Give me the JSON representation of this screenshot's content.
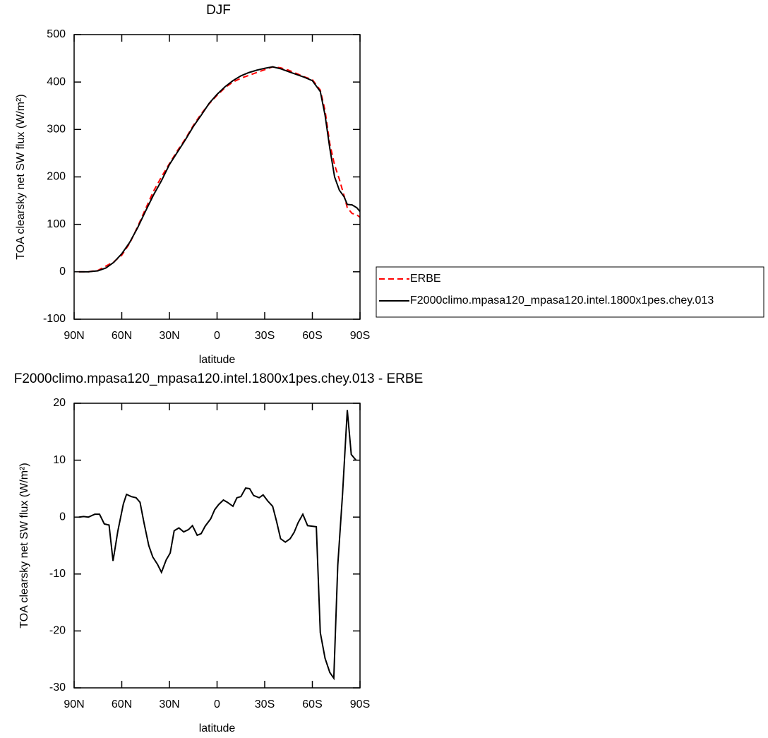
{
  "chart_data": [
    {
      "type": "line",
      "title": "DJF",
      "xlabel": "latitude",
      "ylabel": "TOA clearsky net SW flux (W/m²)",
      "x": [
        87,
        81,
        75,
        70,
        65,
        60,
        55,
        50,
        45,
        40,
        35,
        30,
        25,
        20,
        15,
        10,
        5,
        0,
        -5,
        -10,
        -15,
        -20,
        -25,
        -30,
        -35,
        -40,
        -45,
        -50,
        -55,
        -60,
        -65,
        -68,
        -71,
        -74,
        -77,
        -80,
        -82,
        -85,
        -88,
        -90
      ],
      "series": [
        {
          "name": "ERBE",
          "color": "#ff0000",
          "line_style": "dashed",
          "values": [
            0,
            0,
            3,
            12,
            21,
            35,
            60,
            95,
            133,
            170,
            200,
            228,
            255,
            280,
            308,
            333,
            354,
            372,
            388,
            400,
            408,
            414,
            420,
            426,
            432,
            430,
            425,
            418,
            411,
            405,
            383,
            340,
            270,
            225,
            195,
            160,
            135,
            123,
            120,
            115
          ]
        },
        {
          "name": "F2000climo.mpasa120_mpasa120.intel.1800x1pes.chey.013",
          "color": "#000000",
          "line_style": "solid",
          "values": [
            0,
            0,
            2,
            8,
            20,
            38,
            62,
            93,
            128,
            162,
            192,
            226,
            252,
            278,
            306,
            330,
            355,
            374,
            390,
            403,
            413,
            420,
            425,
            429,
            432,
            428,
            422,
            416,
            410,
            403,
            380,
            330,
            260,
            200,
            172,
            158,
            142,
            141,
            135,
            127
          ]
        }
      ],
      "xlim": [
        90,
        -90
      ],
      "xticks": [
        {
          "value": 90,
          "label": "90N"
        },
        {
          "value": 60,
          "label": "60N"
        },
        {
          "value": 30,
          "label": "30N"
        },
        0,
        {
          "value": -30,
          "label": "30S"
        },
        {
          "value": -60,
          "label": "60S"
        },
        {
          "value": -90,
          "label": "90S"
        }
      ],
      "ylim": [
        -100,
        500
      ],
      "yticks": [
        -100,
        0,
        100,
        200,
        300,
        400,
        500
      ],
      "legend": "right"
    },
    {
      "type": "line",
      "title": "F2000climo.mpasa120_mpasa120.intel.1800x1pes.chey.013 - ERBE",
      "xlabel": "latitude",
      "ylabel": "TOA clearsky net SW flux (W/m²)",
      "x": [
        87,
        84,
        81,
        77,
        74,
        71,
        68,
        65.5,
        62.5,
        59,
        57,
        54,
        51,
        48.5,
        46,
        43,
        40.5,
        37.5,
        35,
        32,
        29.5,
        27,
        24,
        21,
        18,
        15.5,
        12.5,
        10,
        7.5,
        4,
        1.5,
        -1,
        -4,
        -6.5,
        -10,
        -12.5,
        -15,
        -18,
        -20.5,
        -23,
        -26.5,
        -29,
        -32,
        -35,
        -37.5,
        -40,
        -43,
        -46,
        -48.5,
        -51,
        -54,
        -57,
        -62.5,
        -65,
        -68,
        -71,
        -73.5,
        -76,
        -79,
        -82,
        -84.5,
        -87.5
      ],
      "series": [
        {
          "color": "#000000",
          "line_style": "solid",
          "values": [
            0,
            0.1,
            0,
            0.5,
            0.5,
            -1.2,
            -1.4,
            -7.7,
            -2.5,
            2.3,
            4,
            3.6,
            3.4,
            2.6,
            -1,
            -5,
            -7,
            -8.3,
            -9.7,
            -7.5,
            -6.3,
            -2.4,
            -1.9,
            -2.6,
            -2.2,
            -1.5,
            -3.2,
            -2.9,
            -1.6,
            -0.3,
            1.3,
            2.2,
            3,
            2.6,
            1.9,
            3.4,
            3.6,
            5.1,
            5,
            3.8,
            3.4,
            3.9,
            2.8,
            1.9,
            -0.8,
            -3.8,
            -4.4,
            -3.8,
            -2.7,
            -1,
            0.5,
            -1.5,
            -1.7,
            -20.3,
            -24.8,
            -27.3,
            -28.3,
            -8.5,
            4,
            18.8,
            11,
            10
          ]
        }
      ],
      "xlim": [
        90,
        -90
      ],
      "xticks": [
        {
          "value": 90,
          "label": "90N"
        },
        {
          "value": 60,
          "label": "60N"
        },
        {
          "value": 30,
          "label": "30N"
        },
        0,
        {
          "value": -30,
          "label": "30S"
        },
        {
          "value": -60,
          "label": "60S"
        },
        {
          "value": -90,
          "label": "90S"
        }
      ],
      "ylim": [
        -30,
        20
      ],
      "yticks": [
        -30,
        -20,
        -10,
        0,
        10,
        20
      ]
    }
  ]
}
